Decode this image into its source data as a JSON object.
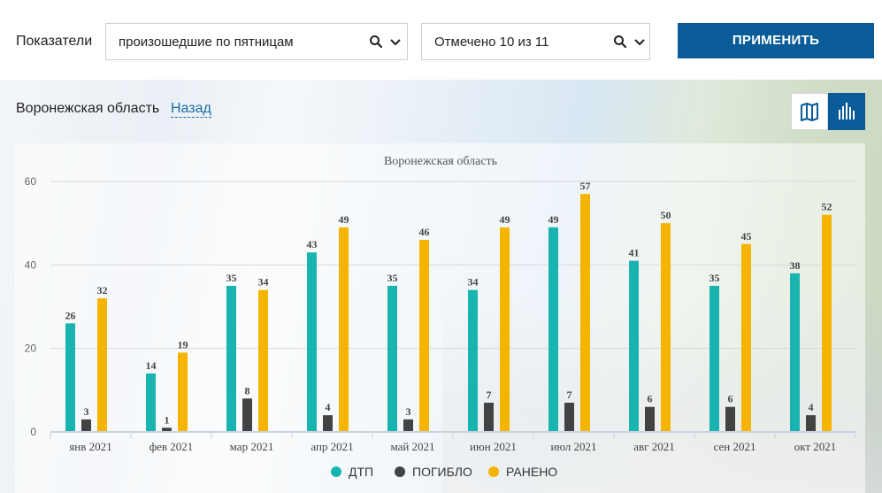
{
  "filters": {
    "indicator_label": "Показатели",
    "indicator_value": "произошедшие по пятницам",
    "marked_value": "Отмечено 10 из 11",
    "apply_label": "ПРИМЕНИТЬ"
  },
  "region": {
    "title": "Воронежская область",
    "back_label": "Назад"
  },
  "icons": {
    "search": "search-icon",
    "chevron": "chevron-down-icon",
    "map": "map-icon",
    "bar_chart": "bar-chart-icon"
  },
  "colors": {
    "accent": "#0a5c99",
    "dtp": "#19b4b0",
    "killed": "#434343",
    "injured": "#f5b400"
  },
  "chart_data": {
    "type": "bar",
    "title": "Воронежская область",
    "categories": [
      "янв 2021",
      "фев 2021",
      "мар 2021",
      "апр 2021",
      "май 2021",
      "июн 2021",
      "июл 2021",
      "авг 2021",
      "сен 2021",
      "окт 2021"
    ],
    "series": [
      {
        "name": "ДТП",
        "color": "#19b4b0",
        "values": [
          26,
          14,
          35,
          43,
          35,
          34,
          49,
          41,
          35,
          38
        ]
      },
      {
        "name": "ПОГИБЛО",
        "color": "#434343",
        "values": [
          3,
          1,
          8,
          4,
          3,
          7,
          7,
          6,
          6,
          4
        ]
      },
      {
        "name": "РАНЕНО",
        "color": "#f5b400",
        "values": [
          32,
          19,
          34,
          49,
          46,
          49,
          57,
          50,
          45,
          52
        ]
      }
    ],
    "y_ticks": [
      0,
      20,
      40,
      60
    ],
    "ylim": [
      0,
      60
    ],
    "grid": true,
    "legend_position": "bottom-center"
  }
}
